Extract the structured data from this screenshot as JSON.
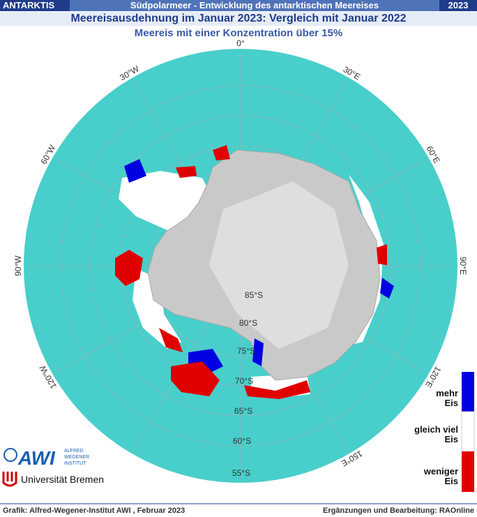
{
  "header": {
    "region": "ANTARKTIS",
    "topic": "Südpolarmeer - Entwicklung des antarktischen  Meereises",
    "year": "2023"
  },
  "title": "Meereisausdehnung im Januar 2023: Vergleich mit Januar 2022",
  "subtitle": "Meereis mit einer Konzentration über 15%",
  "map": {
    "longitudes": [
      "0°",
      "30°E",
      "60°E",
      "90°E",
      "120°E",
      "150°E",
      "30°W",
      "60°W",
      "90°W",
      "120°W"
    ],
    "latitudes": [
      "85°S",
      "80°S",
      "75°S",
      "70°S",
      "65°S",
      "60°S",
      "55°S"
    ]
  },
  "legend": [
    {
      "line1": "mehr",
      "line2": "Eis"
    },
    {
      "line1": "gleich viel",
      "line2": "Eis"
    },
    {
      "line1": "weniger",
      "line2": "Eis"
    }
  ],
  "logos": {
    "awi": "AWI",
    "awi_name": [
      "ALFRED",
      "WEGENER",
      "INSTITUT"
    ],
    "bremen": "Universität Bremen"
  },
  "footer": {
    "left": "Grafik: Alfred-Wegener-Institut AWI , Februar 2023",
    "right": "Ergänzungen und Bearbeitung: RAOnline"
  }
}
